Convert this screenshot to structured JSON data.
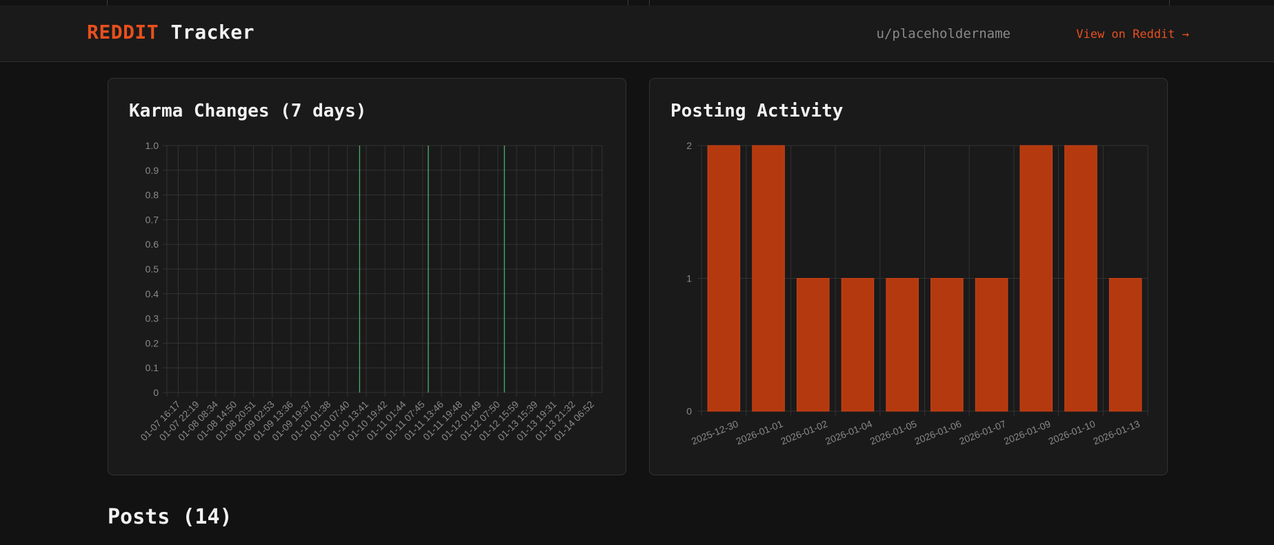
{
  "header": {
    "brand_red": "REDDIT",
    "brand_white": "Tracker",
    "username": "u/placeholdername",
    "view_link": "View on Reddit →"
  },
  "colors": {
    "accent": "#e8501e",
    "bar_fill": "#b5390e",
    "karma_line": "#4caf6a",
    "grid": "#333333"
  },
  "chart_data": [
    {
      "type": "line",
      "title": "Karma Changes (7 days)",
      "categories": [
        "01-07 16:17",
        "01-07 22:19",
        "01-08 08:34",
        "01-08 14:50",
        "01-08 20:51",
        "01-09 02:53",
        "01-09 13:36",
        "01-09 19:37",
        "01-10 01:38",
        "01-10 07:40",
        "01-10 13:41",
        "01-10 19:42",
        "01-11 01:44",
        "01-11 07:45",
        "01-11 13:46",
        "01-11 19:48",
        "01-12 01:49",
        "01-12 07:50",
        "01-12 15:59",
        "01-13 15:39",
        "01-13 19:31",
        "01-13 21:32",
        "01-14 06:52"
      ],
      "y_ticks": [
        "0",
        "0.1",
        "0.2",
        "0.3",
        "0.4",
        "0.5",
        "0.6",
        "0.7",
        "0.8",
        "0.9",
        "1.0"
      ],
      "ylim": [
        0,
        1
      ],
      "spikes": [
        9.65,
        13.3,
        17.35
      ],
      "grid": true
    },
    {
      "type": "bar",
      "title": "Posting Activity",
      "categories": [
        "2025-12-30",
        "2026-01-01",
        "2026-01-02",
        "2026-01-04",
        "2026-01-05",
        "2026-01-06",
        "2026-01-07",
        "2026-01-09",
        "2026-01-10",
        "2026-01-13"
      ],
      "values": [
        2,
        2,
        1,
        1,
        1,
        1,
        1,
        2,
        2,
        1
      ],
      "y_ticks": [
        "0",
        "1",
        "2"
      ],
      "ylim": [
        0,
        2
      ],
      "grid": true
    }
  ],
  "posts": {
    "title": "Posts (14)"
  }
}
